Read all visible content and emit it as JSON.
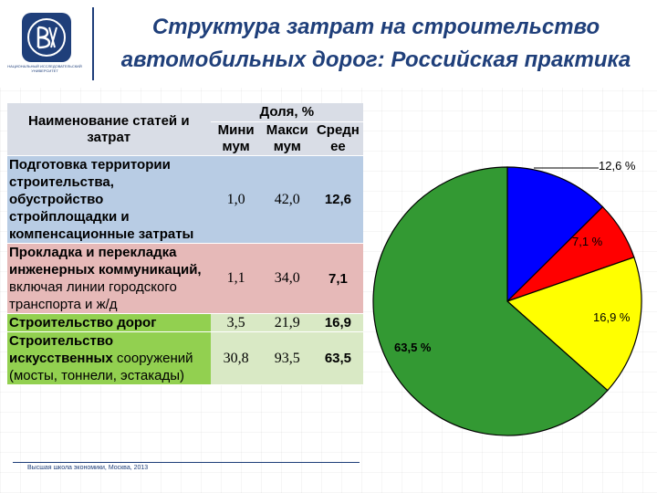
{
  "header": {
    "title_line1": "Структура затрат на строительство",
    "title_line2": "автомобильных дорог: Российская практика",
    "logo_subtext": "НАЦИОНАЛЬНЫЙ ИССЛЕДОВАТЕЛЬСКИЙ УНИВЕРСИТЕТ"
  },
  "table": {
    "header_name": "Наименование статей и затрат",
    "header_share": "Доля, %",
    "header_min": "Мини мум",
    "header_max": "Макси мум",
    "header_avg": "Средн ее",
    "rows": [
      {
        "name": "Подготовка территории строительства, обустройство стройплощадки и компенсационные затраты",
        "min": "1,0",
        "max": "42,0",
        "avg": "12,6"
      },
      {
        "name": "Прокладка и перекладка инженерных коммуникаций, включая линии городского транспорта и ж/д",
        "min": "1,1",
        "max": "34,0",
        "avg": "7,1"
      },
      {
        "name": "Строительство дорог",
        "min": "3,5",
        "max": "21,9",
        "avg": "16,9"
      },
      {
        "name": "Строительство искусственных сооружений (мосты, тоннели, эстакады)",
        "min": "30,8",
        "max": "93,5",
        "avg": "63,5"
      }
    ]
  },
  "footer": {
    "text": "Высшая школа экономики, Москва, 2013"
  },
  "chart_data": {
    "type": "pie",
    "title": "",
    "start_angle_deg": 0,
    "direction": "clockwise",
    "slices": [
      {
        "value": 12.6,
        "label": "12,6 %",
        "color": "#0000ff"
      },
      {
        "value": 7.1,
        "label": "7,1 %",
        "color": "#ff0000"
      },
      {
        "value": 16.9,
        "label": "16,9 %",
        "color": "#ffff00"
      },
      {
        "value": 63.5,
        "label": "63,5 %",
        "color": "#339933"
      }
    ]
  },
  "colors": {
    "title": "#1f3f7a",
    "row1_bg": "#b8cce4",
    "row2_bg": "#e6b9b8",
    "row3_bg": "#92d050",
    "header_bg": "#d9dde6"
  }
}
